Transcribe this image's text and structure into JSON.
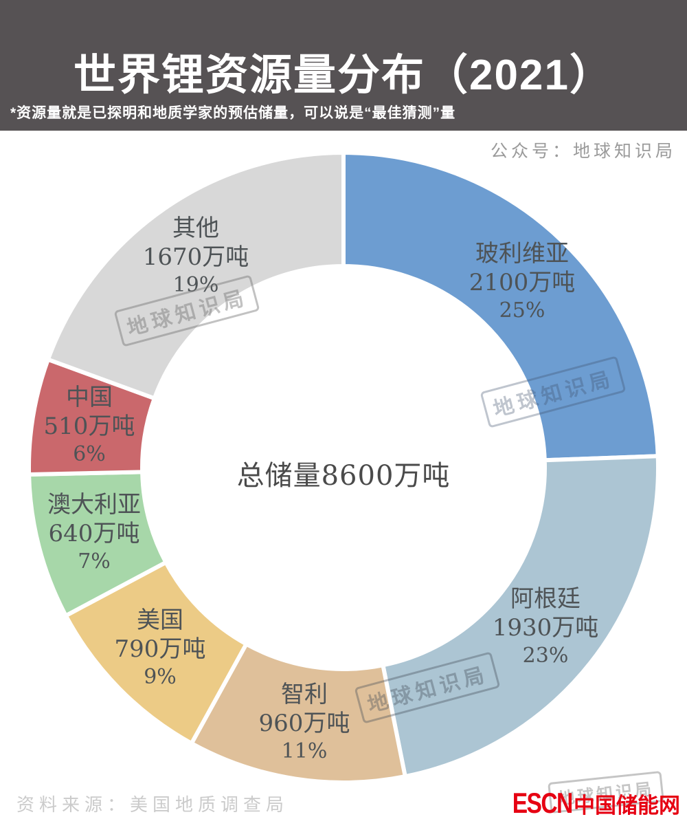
{
  "header": {
    "title": "世界锂资源量分布（2021）",
    "subtitle": "*资源量就是已探明和地质学家的预估储量，可以说是“最佳猜测”量"
  },
  "byline": {
    "text": "公众号：地球知识局"
  },
  "chart_data": {
    "type": "pie",
    "subtype": "donut",
    "title": "世界锂资源量分布（2021）",
    "center_label": "总储量8600万吨",
    "total_value_wan_tons": 8600,
    "unit": "万吨",
    "start_angle": "12-o-clock",
    "direction": "clockwise",
    "segments": [
      {
        "key": "bolivia",
        "name": "玻利维亚",
        "amount": "2100万吨",
        "value": 2100,
        "percent": "25%",
        "color": "#6D9DD1"
      },
      {
        "key": "argentina",
        "name": "阿根廷",
        "amount": "1930万吨",
        "value": 1930,
        "percent": "23%",
        "color": "#ACC5D3"
      },
      {
        "key": "chile",
        "name": "智利",
        "amount": "960万吨",
        "value": 960,
        "percent": "11%",
        "color": "#DFC09A"
      },
      {
        "key": "usa",
        "name": "美国",
        "amount": "790万吨",
        "value": 790,
        "percent": "9%",
        "color": "#ECCB86"
      },
      {
        "key": "australia",
        "name": "澳大利亚",
        "amount": "640万吨",
        "value": 640,
        "percent": "7%",
        "color": "#A7D7A9"
      },
      {
        "key": "china",
        "name": "中国",
        "amount": "510万吨",
        "value": 510,
        "percent": "6%",
        "color": "#CA686C"
      },
      {
        "key": "other",
        "name": "其他",
        "amount": "1670万吨",
        "value": 1670,
        "percent": "19%",
        "color": "#D8D8D8"
      }
    ]
  },
  "watermark": {
    "text": "地球知识局"
  },
  "footer": {
    "source": "资料来源：美国地质调查局"
  },
  "logo": {
    "en": "ESCN",
    "zh": "中国储能网",
    "color": "#E60012"
  }
}
